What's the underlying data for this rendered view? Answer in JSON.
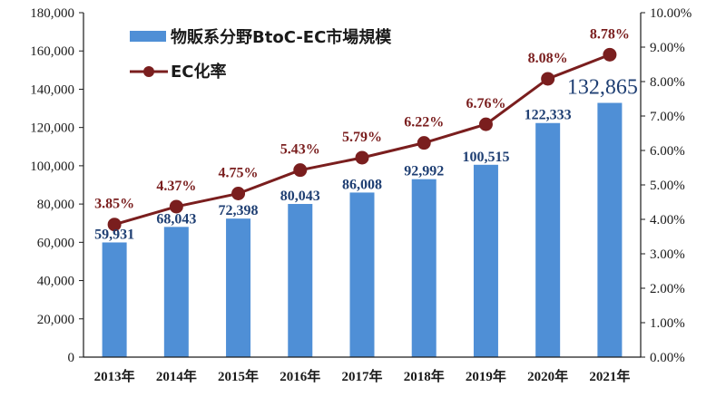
{
  "chart_data": {
    "type": "bar",
    "categories": [
      "2013年",
      "2014年",
      "2015年",
      "2016年",
      "2017年",
      "2018年",
      "2019年",
      "2020年",
      "2021年"
    ],
    "series": [
      {
        "name": "物販系分野BtoC-EC市場規模",
        "type": "bar",
        "axis": "left",
        "color": "#4f8fd6",
        "values": [
          59931,
          68043,
          72398,
          80043,
          86008,
          92992,
          100515,
          122333,
          132865
        ],
        "labels": [
          "59,931",
          "68,043",
          "72,398",
          "80,043",
          "86,008",
          "92,992",
          "100,515",
          "122,333",
          "132,865"
        ]
      },
      {
        "name": "EC化率",
        "type": "line",
        "axis": "right",
        "color": "#7a1e1e",
        "values": [
          3.85,
          4.37,
          4.75,
          5.43,
          5.79,
          6.22,
          6.76,
          8.08,
          8.78
        ],
        "labels": [
          "3.85%",
          "4.37%",
          "4.75%",
          "5.43%",
          "5.79%",
          "6.22%",
          "6.76%",
          "8.08%",
          "8.78%"
        ]
      }
    ],
    "y_left": {
      "min": 0,
      "max": 180000,
      "ticks": [
        0,
        20000,
        40000,
        60000,
        80000,
        100000,
        120000,
        140000,
        160000,
        180000
      ],
      "tick_labels": [
        "0",
        "20,000",
        "40,000",
        "60,000",
        "80,000",
        "100,000",
        "120,000",
        "140,000",
        "160,000",
        "180,000"
      ]
    },
    "y_right": {
      "min": 0,
      "max": 10,
      "ticks": [
        0,
        1,
        2,
        3,
        4,
        5,
        6,
        7,
        8,
        9,
        10
      ],
      "tick_labels": [
        "0.00%",
        "1.00%",
        "2.00%",
        "3.00%",
        "4.00%",
        "5.00%",
        "6.00%",
        "7.00%",
        "8.00%",
        "9.00%",
        "10.00%"
      ]
    },
    "title": "",
    "xlabel": "",
    "ylabel": "",
    "grid": false,
    "legend": {
      "placement": "top-left",
      "entries": [
        "物販系分野BtoC-EC市場規模",
        "EC化率"
      ]
    }
  }
}
